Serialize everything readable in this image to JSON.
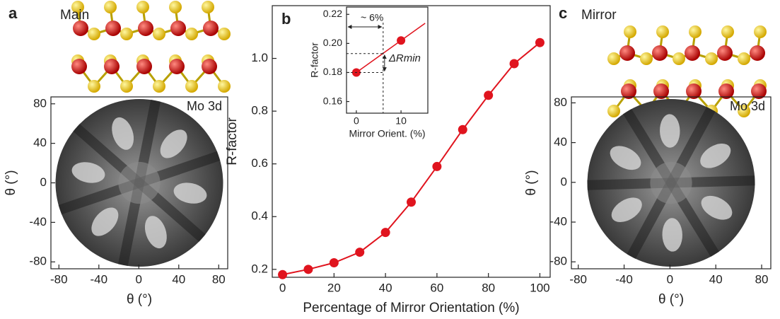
{
  "chart_data": [
    {
      "type": "image",
      "panel_label": "a",
      "title": "Main",
      "annotation": "Mo 3d",
      "xlabel": "θ (°)",
      "ylabel": "θ (°)",
      "xlim": [
        -88,
        89
      ],
      "ylim": [
        -87,
        87
      ],
      "xticks": [
        -80,
        -40,
        0,
        40,
        80
      ],
      "yticks": [
        -80,
        -40,
        0,
        40,
        80
      ]
    },
    {
      "type": "line",
      "panel_label": "b",
      "xlabel": "Percentage of Mirror Orientation (%)",
      "ylabel": "R-factor",
      "x": [
        0,
        10,
        20,
        30,
        40,
        50,
        60,
        70,
        80,
        90,
        100
      ],
      "series": [
        {
          "color": "#e0141e",
          "values": [
            0.18,
            0.2,
            0.225,
            0.265,
            0.34,
            0.455,
            0.59,
            0.73,
            0.86,
            0.98,
            1.06
          ]
        }
      ],
      "xlim": [
        -4,
        104
      ],
      "ylim": [
        0.17,
        1.2
      ],
      "xticks": [
        0,
        20,
        40,
        60,
        80,
        100
      ],
      "yticks": [
        0.2,
        0.4,
        0.6,
        0.8,
        {
          "value": 1,
          "label": "1.0"
        }
      ]
    },
    {
      "type": "inset",
      "xlabel": "Mirror Orient. (%)",
      "ylabel": "R-factor",
      "x": [
        0,
        10
      ],
      "series": [
        {
          "color": "#e0141e",
          "values": [
            0.18,
            0.202
          ]
        }
      ],
      "xlim": [
        -2.2,
        16
      ],
      "ylim": [
        0.152,
        0.225
      ],
      "xticks": [
        0,
        10
      ],
      "yticks": [
        0.16,
        0.18,
        {
          "value": 0.2,
          "label": "0.20"
        },
        0.22
      ],
      "annotations": [
        "~ 6%",
        "ΔRmin"
      ],
      "guide_x": 6,
      "guide_y": 0.193
    },
    {
      "type": "image",
      "panel_label": "c",
      "title": "Mirror",
      "annotation": "Mo 3d",
      "xlabel": "θ (°)",
      "ylabel": "θ (°)",
      "xlim": [
        -86,
        88
      ],
      "ylim": [
        -87,
        86
      ],
      "xticks": [
        -80,
        -40,
        0,
        40,
        80
      ],
      "yticks": [
        -80,
        -40,
        0,
        40,
        80
      ]
    }
  ]
}
